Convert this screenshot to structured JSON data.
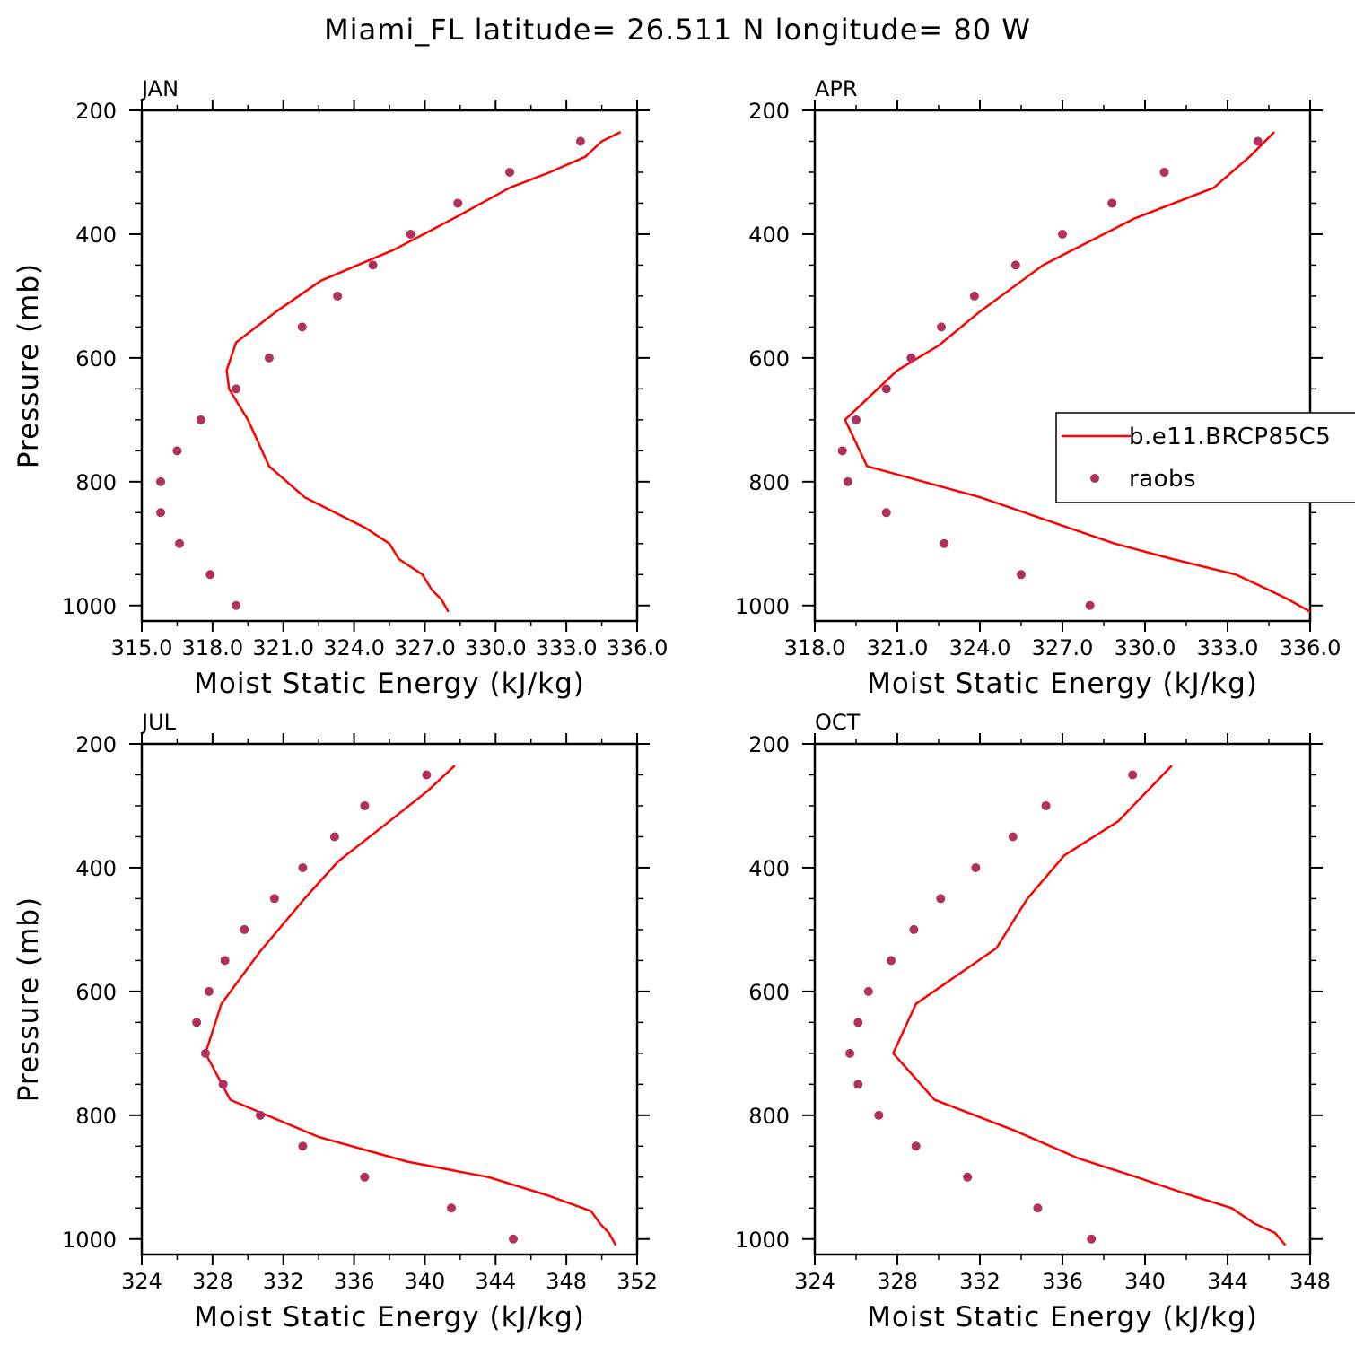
{
  "title": "Miami_FL  latitude= 26.511 N longitude= 80 W",
  "colors": {
    "model": "#ff0000",
    "raobs": "#b03060"
  },
  "legend": {
    "placement": "right of APR panel",
    "items": [
      "b.e11.BRCP85C5",
      "raobs"
    ]
  },
  "chart_data": [
    {
      "type": "line",
      "panel": "JAN",
      "xlabel": "Moist Static Energy (kJ/kg)",
      "ylabel": "Pressure (mb)",
      "xlim": [
        315.0,
        336.0
      ],
      "ylim": [
        1025,
        200
      ],
      "xticks": [
        315,
        318,
        321,
        324,
        327,
        330,
        333,
        336
      ],
      "xtick_labels": [
        "315.0",
        "318.0",
        "321.0",
        "324.0",
        "327.0",
        "330.0",
        "333.0",
        "336.0"
      ],
      "yticks": [
        200,
        400,
        600,
        800,
        1000
      ],
      "ytick_labels": [
        "200",
        "400",
        "600",
        "800",
        "1000"
      ],
      "series": [
        {
          "name": "b.e11.BRCP85C5",
          "style": "line",
          "x": [
            328.0,
            327.7,
            327.3,
            326.9,
            325.9,
            325.5,
            324.5,
            321.9,
            320.4,
            319.5,
            318.7,
            318.6,
            319.0,
            320.7,
            322.6,
            325.7,
            328.2,
            330.6,
            332.3,
            333.8,
            334.5,
            335.3
          ],
          "y": [
            1010,
            990,
            975,
            950,
            925,
            900,
            875,
            825,
            775,
            700,
            650,
            620,
            575,
            525,
            475,
            425,
            375,
            325,
            300,
            275,
            250,
            235
          ]
        },
        {
          "name": "raobs",
          "style": "markers",
          "x": [
            319.0,
            317.9,
            316.6,
            315.8,
            315.8,
            316.5,
            317.5,
            319.0,
            320.4,
            321.8,
            323.3,
            324.8,
            326.4,
            328.4,
            330.6,
            333.6
          ],
          "y": [
            1000,
            950,
            900,
            850,
            800,
            750,
            700,
            650,
            600,
            550,
            500,
            450,
            400,
            350,
            300,
            250
          ]
        }
      ]
    },
    {
      "type": "line",
      "panel": "APR",
      "xlabel": "Moist Static Energy (kJ/kg)",
      "ylabel": "",
      "xlim": [
        318.0,
        336.0
      ],
      "ylim": [
        1025,
        200
      ],
      "xticks": [
        318,
        321,
        324,
        327,
        330,
        333,
        336
      ],
      "xtick_labels": [
        "318.0",
        "321.0",
        "324.0",
        "327.0",
        "330.0",
        "333.0",
        "336.0"
      ],
      "yticks": [
        200,
        400,
        600,
        800,
        1000
      ],
      "ytick_labels": [
        "200",
        "400",
        "600",
        "800",
        "1000"
      ],
      "series": [
        {
          "name": "b.e11.BRCP85C5",
          "style": "line",
          "x": [
            336.0,
            335.2,
            334.5,
            333.3,
            331.0,
            328.9,
            324.0,
            319.9,
            319.1,
            321.0,
            322.5,
            324.0,
            326.3,
            329.6,
            332.5,
            333.8,
            334.7
          ],
          "y": [
            1010,
            990,
            975,
            950,
            925,
            900,
            825,
            775,
            700,
            620,
            580,
            525,
            450,
            375,
            325,
            275,
            235
          ]
        },
        {
          "name": "raobs",
          "style": "markers",
          "x": [
            328.0,
            325.5,
            322.7,
            320.6,
            319.2,
            319.0,
            319.5,
            320.6,
            321.5,
            322.6,
            323.8,
            325.3,
            327.0,
            328.8,
            330.7,
            334.1
          ],
          "y": [
            1000,
            950,
            900,
            850,
            800,
            750,
            700,
            650,
            600,
            550,
            500,
            450,
            400,
            350,
            300,
            250
          ]
        }
      ]
    },
    {
      "type": "line",
      "panel": "JUL",
      "xlabel": "Moist Static Energy (kJ/kg)",
      "ylabel": "Pressure (mb)",
      "xlim": [
        324,
        352
      ],
      "ylim": [
        1025,
        200
      ],
      "xticks": [
        324,
        328,
        332,
        336,
        340,
        344,
        348,
        352
      ],
      "xtick_labels": [
        "324",
        "328",
        "332",
        "336",
        "340",
        "344",
        "348",
        "352"
      ],
      "yticks": [
        200,
        400,
        600,
        800,
        1000
      ],
      "ytick_labels": [
        "200",
        "400",
        "600",
        "800",
        "1000"
      ],
      "series": [
        {
          "name": "b.e11.BRCP85C5",
          "style": "line",
          "x": [
            350.8,
            350.4,
            349.9,
            349.4,
            347.0,
            343.6,
            339.0,
            334.0,
            329.0,
            327.6,
            328.5,
            330.7,
            333.2,
            335.1,
            338.0,
            340.2,
            341.7
          ],
          "y": [
            1010,
            990,
            975,
            955,
            930,
            900,
            875,
            835,
            775,
            700,
            620,
            535,
            450,
            390,
            325,
            275,
            235
          ]
        },
        {
          "name": "raobs",
          "style": "markers",
          "x": [
            345.0,
            341.5,
            336.6,
            333.1,
            330.7,
            328.6,
            327.6,
            327.1,
            327.8,
            328.7,
            329.8,
            331.5,
            333.1,
            334.9,
            336.6,
            340.1
          ],
          "y": [
            1000,
            950,
            900,
            850,
            800,
            750,
            700,
            650,
            600,
            550,
            500,
            450,
            400,
            350,
            300,
            250
          ]
        }
      ]
    },
    {
      "type": "line",
      "panel": "OCT",
      "xlabel": "Moist Static Energy (kJ/kg)",
      "ylabel": "",
      "xlim": [
        324,
        348
      ],
      "ylim": [
        1025,
        200
      ],
      "xticks": [
        324,
        328,
        332,
        336,
        340,
        344,
        348
      ],
      "xtick_labels": [
        "324",
        "328",
        "332",
        "336",
        "340",
        "344",
        "348"
      ],
      "yticks": [
        200,
        400,
        600,
        800,
        1000
      ],
      "ytick_labels": [
        "200",
        "400",
        "600",
        "800",
        "1000"
      ],
      "series": [
        {
          "name": "b.e11.BRCP85C5",
          "style": "line",
          "x": [
            346.8,
            346.3,
            345.3,
            344.2,
            341.8,
            339.6,
            336.8,
            333.7,
            329.8,
            327.8,
            328.9,
            332.8,
            334.3,
            336.1,
            338.7,
            341.3
          ],
          "y": [
            1010,
            990,
            975,
            950,
            925,
            900,
            870,
            825,
            775,
            700,
            620,
            530,
            450,
            380,
            325,
            235
          ]
        },
        {
          "name": "raobs",
          "style": "markers",
          "x": [
            337.4,
            334.8,
            331.4,
            328.9,
            327.1,
            326.1,
            325.7,
            326.1,
            326.6,
            327.7,
            328.8,
            330.1,
            331.8,
            333.6,
            335.2,
            339.4
          ],
          "y": [
            1000,
            950,
            900,
            850,
            800,
            750,
            700,
            650,
            600,
            550,
            500,
            450,
            400,
            350,
            300,
            250
          ]
        }
      ]
    }
  ]
}
